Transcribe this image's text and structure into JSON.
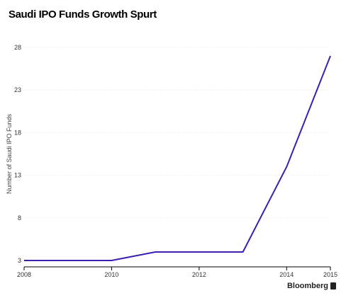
{
  "chart_data": {
    "type": "line",
    "title": "Saudi IPO Funds Growth Spurt",
    "xlabel": "",
    "ylabel": "Number of Saudi IPO Funds",
    "x": [
      2008,
      2009,
      2010,
      2011,
      2012,
      2013,
      2014,
      2015
    ],
    "series": [
      {
        "values": [
          3,
          3,
          3,
          4,
          4,
          4,
          14,
          27
        ],
        "color": "#3d1fb0"
      }
    ],
    "xlim": [
      2008,
      2015
    ],
    "ylim": [
      3,
      28
    ],
    "xticks": [
      2008,
      2010,
      2012,
      2014,
      2015
    ],
    "yticks": [
      3,
      8,
      13,
      18,
      23,
      28
    ],
    "grid": true,
    "legend": "none"
  },
  "source": {
    "label": "Bloomberg",
    "icon": "bloomberg-bookmark-icon"
  }
}
